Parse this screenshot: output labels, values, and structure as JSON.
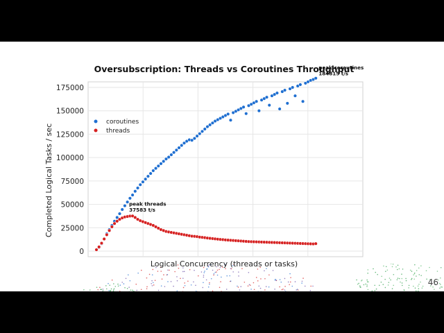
{
  "slide": {
    "page_number": "46",
    "decoration": "scattered dots background"
  },
  "colors": {
    "coroutines": "#1f6fd1",
    "threads": "#d62020",
    "grid": "#e6e6e6",
    "axis": "#333333"
  },
  "chart_data": {
    "type": "scatter",
    "title": "Oversubscription: Threads vs Coroutines Throughput",
    "xlabel": "Logical Concurrency (threads or tasks)",
    "ylabel": "Completed Logical Tasks / sec",
    "ylim": [
      0,
      185000
    ],
    "xlim": [
      0,
      1
    ],
    "y_ticks": [
      0,
      25000,
      50000,
      75000,
      100000,
      125000,
      150000,
      175000
    ],
    "y_tick_labels": [
      "0",
      "25000",
      "50000",
      "75000",
      "100000",
      "125000",
      "150000",
      "175000"
    ],
    "x_ticks_labeled": false,
    "grid": true,
    "legend": "top-left",
    "series": [
      {
        "name": "coroutines",
        "color": "#1f6fd1",
        "points": [
          [
            0.0,
            1500
          ],
          [
            0.01,
            4000
          ],
          [
            0.02,
            8000
          ],
          [
            0.03,
            13000
          ],
          [
            0.04,
            18500
          ],
          [
            0.05,
            23000
          ],
          [
            0.06,
            27500
          ],
          [
            0.07,
            32000
          ],
          [
            0.08,
            36000
          ],
          [
            0.09,
            40000
          ],
          [
            0.1,
            44500
          ],
          [
            0.11,
            48500
          ],
          [
            0.12,
            52500
          ],
          [
            0.13,
            56500
          ],
          [
            0.14,
            60000
          ],
          [
            0.15,
            64000
          ],
          [
            0.16,
            67500
          ],
          [
            0.17,
            71000
          ],
          [
            0.18,
            74000
          ],
          [
            0.19,
            77000
          ],
          [
            0.2,
            80000
          ],
          [
            0.21,
            83000
          ],
          [
            0.22,
            86000
          ],
          [
            0.23,
            88500
          ],
          [
            0.24,
            91000
          ],
          [
            0.25,
            93500
          ],
          [
            0.26,
            96000
          ],
          [
            0.27,
            98500
          ],
          [
            0.28,
            100500
          ],
          [
            0.29,
            103000
          ],
          [
            0.3,
            105500
          ],
          [
            0.31,
            108000
          ],
          [
            0.32,
            110500
          ],
          [
            0.33,
            113000
          ],
          [
            0.34,
            115500
          ],
          [
            0.35,
            117500
          ],
          [
            0.36,
            119000
          ],
          [
            0.37,
            118500
          ],
          [
            0.38,
            120500
          ],
          [
            0.39,
            123000
          ],
          [
            0.4,
            125500
          ],
          [
            0.41,
            128000
          ],
          [
            0.42,
            130500
          ],
          [
            0.43,
            133000
          ],
          [
            0.44,
            135000
          ],
          [
            0.45,
            137000
          ],
          [
            0.46,
            139000
          ],
          [
            0.47,
            140500
          ],
          [
            0.48,
            142000
          ],
          [
            0.49,
            143500
          ],
          [
            0.5,
            145000
          ],
          [
            0.51,
            146500
          ],
          [
            0.52,
            140000
          ],
          [
            0.53,
            148000
          ],
          [
            0.54,
            149500
          ],
          [
            0.55,
            151000
          ],
          [
            0.56,
            152500
          ],
          [
            0.57,
            154000
          ],
          [
            0.58,
            147000
          ],
          [
            0.59,
            155500
          ],
          [
            0.6,
            157000
          ],
          [
            0.61,
            158500
          ],
          [
            0.62,
            160000
          ],
          [
            0.63,
            150000
          ],
          [
            0.64,
            161500
          ],
          [
            0.65,
            163000
          ],
          [
            0.66,
            164500
          ],
          [
            0.67,
            156000
          ],
          [
            0.68,
            166000
          ],
          [
            0.69,
            167500
          ],
          [
            0.7,
            169000
          ],
          [
            0.71,
            152000
          ],
          [
            0.72,
            170500
          ],
          [
            0.73,
            172000
          ],
          [
            0.74,
            158000
          ],
          [
            0.75,
            173500
          ],
          [
            0.76,
            175000
          ],
          [
            0.77,
            166000
          ],
          [
            0.78,
            176500
          ],
          [
            0.79,
            178000
          ],
          [
            0.8,
            160000
          ],
          [
            0.81,
            179500
          ],
          [
            0.82,
            181000
          ],
          [
            0.83,
            182500
          ],
          [
            0.84,
            183500
          ],
          [
            0.85,
            184815
          ]
        ]
      },
      {
        "name": "threads",
        "color": "#d62020",
        "points": [
          [
            0.0,
            1500
          ],
          [
            0.01,
            4500
          ],
          [
            0.02,
            8500
          ],
          [
            0.03,
            13000
          ],
          [
            0.04,
            17500
          ],
          [
            0.05,
            22000
          ],
          [
            0.06,
            26000
          ],
          [
            0.07,
            29500
          ],
          [
            0.08,
            32000
          ],
          [
            0.09,
            34000
          ],
          [
            0.1,
            35500
          ],
          [
            0.11,
            36500
          ],
          [
            0.12,
            37000
          ],
          [
            0.13,
            37500
          ],
          [
            0.14,
            37583
          ],
          [
            0.15,
            36000
          ],
          [
            0.16,
            34000
          ],
          [
            0.17,
            32500
          ],
          [
            0.18,
            31500
          ],
          [
            0.19,
            30500
          ],
          [
            0.2,
            29500
          ],
          [
            0.21,
            28500
          ],
          [
            0.22,
            27500
          ],
          [
            0.23,
            26000
          ],
          [
            0.24,
            24500
          ],
          [
            0.25,
            23000
          ],
          [
            0.26,
            22000
          ],
          [
            0.27,
            21000
          ],
          [
            0.28,
            20500
          ],
          [
            0.29,
            20000
          ],
          [
            0.3,
            19500
          ],
          [
            0.31,
            19000
          ],
          [
            0.32,
            18500
          ],
          [
            0.33,
            18000
          ],
          [
            0.34,
            17500
          ],
          [
            0.35,
            17000
          ],
          [
            0.36,
            16500
          ],
          [
            0.37,
            16000
          ],
          [
            0.38,
            15800
          ],
          [
            0.39,
            15500
          ],
          [
            0.4,
            15000
          ],
          [
            0.41,
            14700
          ],
          [
            0.42,
            14400
          ],
          [
            0.43,
            14000
          ],
          [
            0.44,
            13700
          ],
          [
            0.45,
            13400
          ],
          [
            0.46,
            13100
          ],
          [
            0.47,
            12800
          ],
          [
            0.48,
            12500
          ],
          [
            0.49,
            12300
          ],
          [
            0.5,
            12000
          ],
          [
            0.51,
            11800
          ],
          [
            0.52,
            11600
          ],
          [
            0.53,
            11400
          ],
          [
            0.54,
            11200
          ],
          [
            0.55,
            11000
          ],
          [
            0.56,
            10800
          ],
          [
            0.57,
            10600
          ],
          [
            0.58,
            10400
          ],
          [
            0.59,
            10200
          ],
          [
            0.6,
            10100
          ],
          [
            0.61,
            10000
          ],
          [
            0.62,
            9900
          ],
          [
            0.63,
            9800
          ],
          [
            0.64,
            9700
          ],
          [
            0.65,
            9600
          ],
          [
            0.66,
            9500
          ],
          [
            0.67,
            9400
          ],
          [
            0.68,
            9300
          ],
          [
            0.69,
            9200
          ],
          [
            0.7,
            9100
          ],
          [
            0.71,
            9000
          ],
          [
            0.72,
            8900
          ],
          [
            0.73,
            8800
          ],
          [
            0.74,
            8700
          ],
          [
            0.75,
            8600
          ],
          [
            0.76,
            8500
          ],
          [
            0.77,
            8400
          ],
          [
            0.78,
            8300
          ],
          [
            0.79,
            8200
          ],
          [
            0.8,
            8100
          ],
          [
            0.81,
            8000
          ],
          [
            0.82,
            7900
          ],
          [
            0.83,
            7800
          ],
          [
            0.84,
            7700
          ],
          [
            0.85,
            8000
          ]
        ]
      }
    ],
    "annotations": [
      {
        "name": "peak-threads",
        "lines": [
          "peak threads",
          "37583 t/s"
        ],
        "x": 0.14,
        "y": 37583
      },
      {
        "name": "peak-coroutines",
        "lines": [
          "peak coroutines",
          "184815 t/s"
        ],
        "x": 0.85,
        "y": 184815
      }
    ]
  }
}
